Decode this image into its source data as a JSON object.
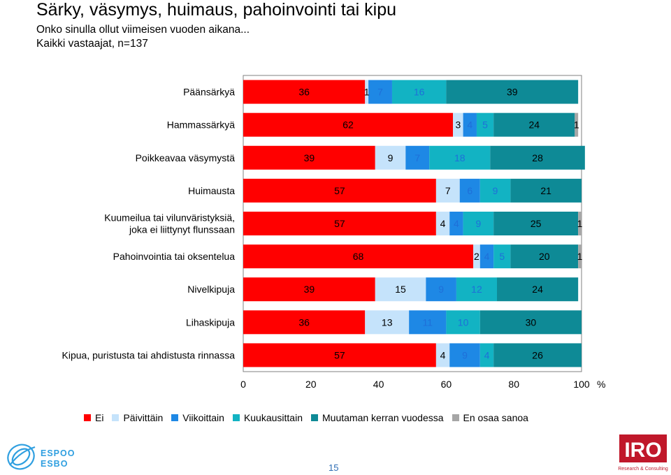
{
  "header": {
    "title": "Särky, väsymys, huimaus, pahoinvointi tai kipu",
    "subtitle1": "Onko sinulla ollut viimeisen vuoden aikana...",
    "subtitle2": "Kaikki vastaajat, n=137"
  },
  "chart_data": {
    "type": "bar",
    "orientation": "horizontal",
    "stacked": true,
    "unit": "%",
    "xlim": [
      0,
      100
    ],
    "x_ticks": [
      "0",
      "20",
      "40",
      "60",
      "80",
      "100"
    ],
    "categories": [
      [
        "Päänsärkyä"
      ],
      [
        "Hammassärkyä"
      ],
      [
        "Poikkeavaa väsymystä"
      ],
      [
        "Huimausta"
      ],
      [
        "Kuumeilua tai vilunväristyksiä,",
        "joka ei liittynyt flunssaan"
      ],
      [
        "Pahoinvointia tai oksentelua"
      ],
      [
        "Nivelkipuja"
      ],
      [
        "Lihaskipuja"
      ],
      [
        "Kipua, puristusta tai ahdistusta rinnassa"
      ]
    ],
    "series": [
      {
        "name": "Ei",
        "color": "#ff0000",
        "values": [
          36,
          62,
          39,
          57,
          57,
          68,
          39,
          36,
          57
        ]
      },
      {
        "name": "Päivittäin",
        "color": "#c5e3fb",
        "values": [
          1,
          3,
          9,
          7,
          4,
          2,
          15,
          13,
          4
        ]
      },
      {
        "name": "Viikoittain",
        "color": "#1e88e5",
        "values": [
          7,
          4,
          7,
          6,
          4,
          4,
          9,
          11,
          9
        ]
      },
      {
        "name": "Kuukausittain",
        "color": "#12b3c3",
        "values": [
          16,
          5,
          18,
          9,
          9,
          5,
          12,
          10,
          4
        ]
      },
      {
        "name": "Muutaman kerran vuodessa",
        "color": "#0e8a96",
        "values": [
          39,
          24,
          28,
          21,
          25,
          20,
          24,
          30,
          26
        ]
      },
      {
        "name": "En osaa sanoa",
        "color": "#a6a6a6",
        "values": [
          0,
          1,
          0,
          0,
          1,
          1,
          0,
          0,
          0
        ]
      }
    ],
    "label_colors": [
      "#000000",
      "#000000",
      "#1e6fd9",
      "#1e6fd9",
      "#000000",
      "#000000"
    ],
    "grid": false,
    "legend_position": "bottom"
  },
  "footer": {
    "page_number": "15",
    "espoo_logo_text": [
      "ESPOO",
      "ESBO"
    ],
    "iro_logo_text": "IRO",
    "iro_logo_sub": "Research & Consulting"
  }
}
